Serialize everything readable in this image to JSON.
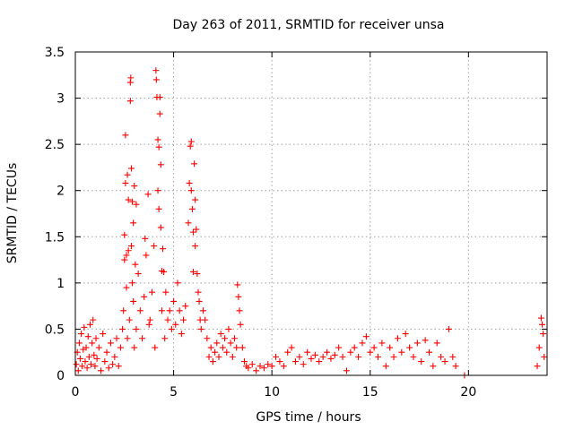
{
  "chart_data": {
    "type": "scatter",
    "title": "Day 263 of 2011, SRMTID for receiver unsa",
    "xlabel": "GPS time / hours",
    "ylabel": "SRMTID / TECUs",
    "xlim": [
      0,
      24
    ],
    "ylim": [
      0,
      3.5
    ],
    "xticks": [
      0,
      5,
      10,
      15,
      20
    ],
    "yticks": [
      0,
      0.5,
      1,
      1.5,
      2,
      2.5,
      3,
      3.5
    ],
    "xtick_labels": [
      "0",
      "5",
      "10",
      "15",
      "20"
    ],
    "ytick_labels": [
      "0",
      "0.5",
      "1",
      "1.5",
      "2",
      "2.5",
      "3",
      "3.5"
    ],
    "grid": true,
    "marker": "+",
    "color": "#ff0000",
    "series": [
      {
        "name": "SRMTID",
        "points": [
          [
            0.05,
            0.12
          ],
          [
            0.1,
            0.25
          ],
          [
            0.15,
            0.05
          ],
          [
            0.2,
            0.35
          ],
          [
            0.25,
            0.18
          ],
          [
            0.3,
            0.45
          ],
          [
            0.35,
            0.1
          ],
          [
            0.4,
            0.28
          ],
          [
            0.45,
            0.52
          ],
          [
            0.5,
            0.15
          ],
          [
            0.55,
            0.3
          ],
          [
            0.6,
            0.08
          ],
          [
            0.65,
            0.42
          ],
          [
            0.7,
            0.2
          ],
          [
            0.75,
            0.55
          ],
          [
            0.8,
            0.12
          ],
          [
            0.85,
            0.35
          ],
          [
            0.9,
            0.6
          ],
          [
            0.95,
            0.22
          ],
          [
            1.0,
            0.1
          ],
          [
            1.05,
            0.4
          ],
          [
            1.1,
            0.18
          ],
          [
            1.2,
            0.3
          ],
          [
            1.3,
            0.05
          ],
          [
            1.4,
            0.45
          ],
          [
            1.5,
            0.15
          ],
          [
            1.6,
            0.25
          ],
          [
            1.7,
            0.08
          ],
          [
            1.8,
            0.35
          ],
          [
            1.9,
            0.12
          ],
          [
            2.0,
            0.2
          ],
          [
            2.1,
            0.4
          ],
          [
            2.2,
            0.1
          ],
          [
            2.3,
            0.3
          ],
          [
            2.4,
            0.5
          ],
          [
            2.45,
            0.7
          ],
          [
            2.5,
            1.25
          ],
          [
            2.5,
            1.52
          ],
          [
            2.55,
            2.08
          ],
          [
            2.55,
            2.6
          ],
          [
            2.6,
            1.3
          ],
          [
            2.6,
            0.95
          ],
          [
            2.65,
            2.17
          ],
          [
            2.65,
            0.4
          ],
          [
            2.7,
            1.9
          ],
          [
            2.7,
            1.35
          ],
          [
            2.75,
            0.6
          ],
          [
            2.8,
            3.17
          ],
          [
            2.8,
            2.97
          ],
          [
            2.82,
            3.22
          ],
          [
            2.85,
            2.24
          ],
          [
            2.85,
            1.4
          ],
          [
            2.9,
            1.88
          ],
          [
            2.9,
            1.0
          ],
          [
            2.95,
            1.65
          ],
          [
            2.95,
            0.8
          ],
          [
            3.0,
            2.05
          ],
          [
            3.0,
            0.3
          ],
          [
            3.05,
            1.2
          ],
          [
            3.1,
            1.85
          ],
          [
            3.1,
            0.5
          ],
          [
            3.2,
            1.1
          ],
          [
            3.3,
            0.7
          ],
          [
            3.4,
            0.4
          ],
          [
            3.5,
            0.85
          ],
          [
            3.55,
            1.48
          ],
          [
            3.6,
            1.3
          ],
          [
            3.7,
            1.96
          ],
          [
            3.75,
            0.55
          ],
          [
            3.8,
            0.6
          ],
          [
            3.9,
            0.9
          ],
          [
            4.0,
            1.4
          ],
          [
            4.05,
            0.3
          ],
          [
            4.1,
            3.3
          ],
          [
            4.12,
            3.2
          ],
          [
            4.15,
            3.01
          ],
          [
            4.2,
            2.55
          ],
          [
            4.2,
            2.0
          ],
          [
            4.25,
            2.47
          ],
          [
            4.25,
            1.8
          ],
          [
            4.3,
            3.01
          ],
          [
            4.3,
            2.83
          ],
          [
            4.35,
            2.28
          ],
          [
            4.35,
            1.6
          ],
          [
            4.4,
            1.13
          ],
          [
            4.4,
            0.7
          ],
          [
            4.45,
            1.37
          ],
          [
            4.5,
            1.12
          ],
          [
            4.55,
            0.4
          ],
          [
            4.6,
            0.9
          ],
          [
            4.7,
            0.6
          ],
          [
            4.8,
            0.7
          ],
          [
            4.9,
            0.5
          ],
          [
            5.0,
            0.8
          ],
          [
            5.1,
            0.55
          ],
          [
            5.2,
            1.0
          ],
          [
            5.3,
            0.7
          ],
          [
            5.4,
            0.45
          ],
          [
            5.5,
            0.6
          ],
          [
            5.6,
            0.75
          ],
          [
            5.75,
            1.65
          ],
          [
            5.8,
            2.08
          ],
          [
            5.85,
            2.48
          ],
          [
            5.9,
            2.53
          ],
          [
            5.9,
            2.0
          ],
          [
            5.95,
            1.8
          ],
          [
            6.0,
            1.55
          ],
          [
            6.0,
            1.12
          ],
          [
            6.05,
            2.29
          ],
          [
            6.1,
            1.9
          ],
          [
            6.1,
            1.4
          ],
          [
            6.15,
            1.58
          ],
          [
            6.2,
            1.1
          ],
          [
            6.25,
            0.9
          ],
          [
            6.3,
            0.8
          ],
          [
            6.35,
            0.6
          ],
          [
            6.4,
            0.5
          ],
          [
            6.5,
            0.7
          ],
          [
            6.6,
            0.6
          ],
          [
            6.7,
            0.4
          ],
          [
            6.8,
            0.2
          ],
          [
            6.9,
            0.3
          ],
          [
            7.0,
            0.15
          ],
          [
            7.1,
            0.25
          ],
          [
            7.2,
            0.35
          ],
          [
            7.3,
            0.2
          ],
          [
            7.4,
            0.45
          ],
          [
            7.5,
            0.3
          ],
          [
            7.6,
            0.4
          ],
          [
            7.7,
            0.25
          ],
          [
            7.8,
            0.5
          ],
          [
            7.9,
            0.35
          ],
          [
            8.0,
            0.2
          ],
          [
            8.1,
            0.4
          ],
          [
            8.2,
            0.3
          ],
          [
            8.25,
            0.98
          ],
          [
            8.3,
            0.85
          ],
          [
            8.35,
            0.7
          ],
          [
            8.4,
            0.55
          ],
          [
            8.5,
            0.3
          ],
          [
            8.6,
            0.15
          ],
          [
            8.7,
            0.1
          ],
          [
            8.8,
            0.08
          ],
          [
            9.0,
            0.12
          ],
          [
            9.2,
            0.05
          ],
          [
            9.4,
            0.1
          ],
          [
            9.6,
            0.08
          ],
          [
            9.8,
            0.12
          ],
          [
            10.0,
            0.1
          ],
          [
            10.2,
            0.2
          ],
          [
            10.4,
            0.15
          ],
          [
            10.6,
            0.1
          ],
          [
            10.8,
            0.25
          ],
          [
            11.0,
            0.3
          ],
          [
            11.2,
            0.15
          ],
          [
            11.4,
            0.2
          ],
          [
            11.6,
            0.12
          ],
          [
            11.8,
            0.25
          ],
          [
            12.0,
            0.18
          ],
          [
            12.2,
            0.22
          ],
          [
            12.4,
            0.15
          ],
          [
            12.6,
            0.2
          ],
          [
            12.8,
            0.25
          ],
          [
            13.0,
            0.18
          ],
          [
            13.2,
            0.22
          ],
          [
            13.4,
            0.3
          ],
          [
            13.6,
            0.2
          ],
          [
            13.8,
            0.05
          ],
          [
            14.0,
            0.25
          ],
          [
            14.2,
            0.3
          ],
          [
            14.4,
            0.2
          ],
          [
            14.6,
            0.35
          ],
          [
            14.8,
            0.42
          ],
          [
            15.0,
            0.25
          ],
          [
            15.2,
            0.3
          ],
          [
            15.4,
            0.2
          ],
          [
            15.6,
            0.35
          ],
          [
            15.8,
            0.1
          ],
          [
            16.0,
            0.3
          ],
          [
            16.2,
            0.2
          ],
          [
            16.4,
            0.4
          ],
          [
            16.6,
            0.25
          ],
          [
            16.8,
            0.45
          ],
          [
            17.0,
            0.3
          ],
          [
            17.2,
            0.2
          ],
          [
            17.4,
            0.35
          ],
          [
            17.6,
            0.15
          ],
          [
            17.8,
            0.38
          ],
          [
            18.0,
            0.25
          ],
          [
            18.2,
            0.1
          ],
          [
            18.4,
            0.35
          ],
          [
            18.6,
            0.2
          ],
          [
            18.8,
            0.15
          ],
          [
            19.0,
            0.5
          ],
          [
            19.2,
            0.2
          ],
          [
            19.35,
            0.1
          ],
          [
            19.8,
            0.0
          ],
          [
            23.5,
            0.1
          ],
          [
            23.6,
            0.3
          ],
          [
            23.7,
            0.62
          ],
          [
            23.75,
            0.55
          ],
          [
            23.8,
            0.45
          ],
          [
            23.85,
            0.2
          ]
        ]
      }
    ]
  }
}
